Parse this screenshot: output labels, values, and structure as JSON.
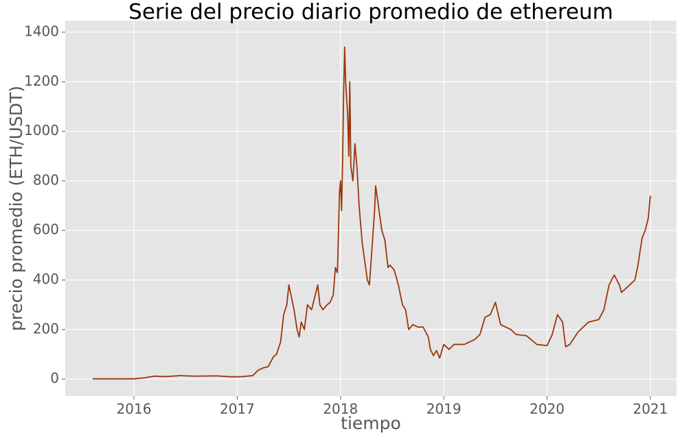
{
  "chart_data": {
    "type": "line",
    "title": "Serie del precio diario promedio de ethereum",
    "xlabel": "tiempo",
    "ylabel": "precio promedio (ETH/USDT)",
    "x": [
      2015.6,
      2015.8,
      2016.0,
      2016.1,
      2016.2,
      2016.3,
      2016.45,
      2016.5,
      2016.6,
      2016.8,
      2016.95,
      2017.05,
      2017.15,
      2017.2,
      2017.25,
      2017.3,
      2017.35,
      2017.38,
      2017.42,
      2017.45,
      2017.48,
      2017.5,
      2017.52,
      2017.55,
      2017.58,
      2017.6,
      2017.62,
      2017.65,
      2017.68,
      2017.72,
      2017.75,
      2017.78,
      2017.8,
      2017.83,
      2017.87,
      2017.9,
      2017.93,
      2017.95,
      2017.97,
      2017.99,
      2018.0,
      2018.01,
      2018.02,
      2018.03,
      2018.04,
      2018.05,
      2018.07,
      2018.08,
      2018.09,
      2018.1,
      2018.12,
      2018.14,
      2018.16,
      2018.18,
      2018.21,
      2018.24,
      2018.26,
      2018.28,
      2018.3,
      2018.33,
      2018.34,
      2018.36,
      2018.4,
      2018.43,
      2018.46,
      2018.48,
      2018.52,
      2018.56,
      2018.6,
      2018.63,
      2018.66,
      2018.7,
      2018.75,
      2018.8,
      2018.85,
      2018.87,
      2018.9,
      2018.93,
      2018.96,
      2019.0,
      2019.05,
      2019.1,
      2019.2,
      2019.3,
      2019.35,
      2019.4,
      2019.45,
      2019.5,
      2019.55,
      2019.6,
      2019.65,
      2019.7,
      2019.8,
      2019.9,
      2020.0,
      2020.05,
      2020.1,
      2020.15,
      2020.18,
      2020.22,
      2020.3,
      2020.4,
      2020.5,
      2020.55,
      2020.6,
      2020.65,
      2020.7,
      2020.72,
      2020.8,
      2020.85,
      2020.88,
      2020.92,
      2020.95,
      2020.98,
      2021.0
    ],
    "series": [
      {
        "name": "precio",
        "color": "#9a3508",
        "values": [
          1,
          1,
          1,
          5,
          12,
          10,
          14,
          13,
          12,
          13,
          9,
          10,
          14,
          35,
          45,
          50,
          90,
          100,
          150,
          260,
          300,
          380,
          340,
          280,
          200,
          170,
          230,
          200,
          300,
          280,
          330,
          380,
          300,
          280,
          300,
          310,
          340,
          450,
          430,
          750,
          800,
          680,
          870,
          1150,
          1340,
          1200,
          1060,
          900,
          1200,
          860,
          800,
          950,
          850,
          700,
          550,
          460,
          400,
          380,
          500,
          680,
          780,
          720,
          600,
          560,
          450,
          460,
          440,
          380,
          300,
          280,
          200,
          220,
          210,
          210,
          170,
          120,
          95,
          115,
          85,
          140,
          120,
          140,
          140,
          160,
          180,
          250,
          260,
          310,
          220,
          210,
          200,
          180,
          175,
          140,
          135,
          180,
          260,
          230,
          130,
          140,
          190,
          230,
          240,
          280,
          380,
          420,
          380,
          350,
          380,
          400,
          460,
          570,
          600,
          650,
          740
        ]
      }
    ],
    "xlim": [
      2015.335,
      2021.253
    ],
    "xticks": [
      2016,
      2017,
      2018,
      2019,
      2020,
      2021
    ],
    "ylim": [
      -69,
      1447
    ],
    "yticks": [
      0,
      200,
      400,
      600,
      800,
      1000,
      1200,
      1400
    ],
    "grid": true
  }
}
